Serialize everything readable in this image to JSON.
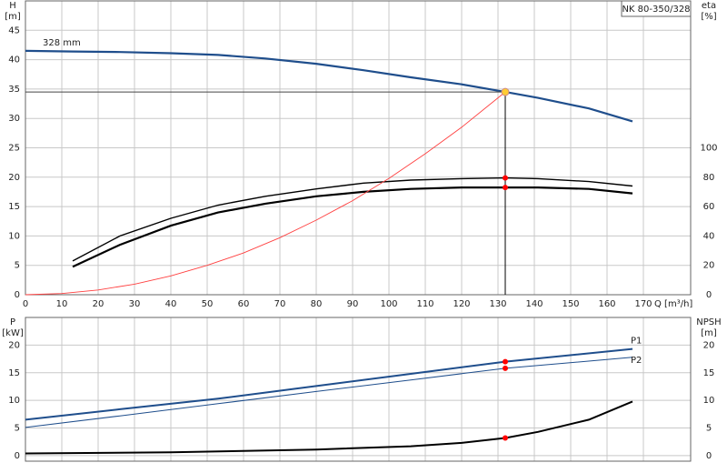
{
  "chart_data": [
    {
      "type": "line",
      "title": "NK 80-350/328",
      "ylabel": "H",
      "yunit": "[m]",
      "y2label": "eta",
      "y2unit": "[%]",
      "xlabel": "Q [m³/h]",
      "annotation": "328 mm",
      "xlim": [
        0,
        183
      ],
      "xticks": [
        0,
        10,
        20,
        30,
        40,
        50,
        60,
        70,
        80,
        90,
        100,
        110,
        120,
        130,
        140,
        150,
        160,
        170
      ],
      "ylim": [
        0,
        50
      ],
      "yticks": [
        0,
        5,
        10,
        15,
        20,
        25,
        30,
        35,
        40,
        45
      ],
      "y2lim": [
        0,
        200
      ],
      "y2ticks": [
        0,
        20,
        40,
        60,
        80,
        100
      ],
      "grid": true,
      "series": [
        {
          "color": "#1f4e8c",
          "width": 2.2,
          "x": [
            0,
            13,
            26,
            40,
            53,
            66,
            80,
            93,
            106,
            120,
            132,
            141,
            155,
            167
          ],
          "values": [
            41.5,
            41.4,
            41.3,
            41.1,
            40.8,
            40.2,
            39.3,
            38.2,
            37,
            35.8,
            34.5,
            33.5,
            31.7,
            29.5
          ]
        },
        {
          "color": "#000000",
          "width": 1.4,
          "axis": "y2",
          "x": [
            13,
            26,
            40,
            53,
            66,
            80,
            93,
            106,
            120,
            132,
            141,
            155,
            167
          ],
          "values": [
            23,
            40,
            52,
            61,
            67,
            72,
            76,
            78,
            79,
            79.5,
            79,
            77,
            74
          ]
        },
        {
          "color": "#000000",
          "width": 2.2,
          "axis": "y2",
          "x": [
            13,
            26,
            40,
            53,
            66,
            80,
            93,
            106,
            120,
            132,
            141,
            155,
            167
          ],
          "values": [
            19,
            34,
            47,
            56,
            62,
            67,
            70,
            72,
            73,
            73,
            73,
            72,
            69
          ]
        },
        {
          "color": "#ff4040",
          "width": 0.9,
          "x": [
            0,
            10,
            20,
            30,
            40,
            50,
            60,
            70,
            80,
            90,
            100,
            110,
            120,
            132
          ],
          "values": [
            0,
            0.2,
            0.8,
            1.8,
            3.2,
            5,
            7.1,
            9.7,
            12.7,
            16,
            19.8,
            24,
            28.5,
            34.5
          ]
        }
      ],
      "points": [
        {
          "x": 132,
          "y": 34.5,
          "color": "#ffcc33",
          "guides": true
        },
        {
          "x": 132,
          "y": 79.5,
          "axis": "y2",
          "color": "#ff0000"
        },
        {
          "x": 132,
          "y": 73,
          "axis": "y2",
          "color": "#ff0000"
        }
      ]
    },
    {
      "type": "line",
      "ylabel": "P",
      "yunit": "[kW]",
      "y2label": "NPSH",
      "y2unit": "[m]",
      "xlim": [
        0,
        183
      ],
      "ylim": [
        -1,
        25
      ],
      "yticks": [
        0,
        5,
        10,
        15,
        20
      ],
      "y2lim": [
        -1,
        25
      ],
      "y2ticks": [
        0,
        5,
        10,
        15,
        20
      ],
      "grid": true,
      "series": [
        {
          "name": "P1",
          "color": "#1f4e8c",
          "width": 2,
          "x": [
            0,
            26,
            53,
            80,
            106,
            132,
            167
          ],
          "values": [
            6.5,
            8.4,
            10.3,
            12.6,
            14.8,
            17,
            19.3
          ]
        },
        {
          "name": "P2",
          "color": "#1f4e8c",
          "width": 1,
          "x": [
            0,
            26,
            53,
            80,
            106,
            132,
            167
          ],
          "values": [
            5.1,
            7.2,
            9.4,
            11.6,
            13.7,
            15.8,
            17.8
          ]
        },
        {
          "color": "#000000",
          "width": 2,
          "axis": "y2",
          "x": [
            0,
            40,
            80,
            106,
            120,
            132,
            141,
            155,
            167
          ],
          "values": [
            0.4,
            0.6,
            1.1,
            1.7,
            2.3,
            3.2,
            4.3,
            6.5,
            9.8
          ]
        }
      ],
      "points": [
        {
          "x": 132,
          "y": 17,
          "color": "#ff0000"
        },
        {
          "x": 132,
          "y": 15.8,
          "color": "#ff0000"
        },
        {
          "x": 132,
          "y": 3.2,
          "axis": "y2",
          "color": "#ff0000"
        }
      ]
    }
  ]
}
